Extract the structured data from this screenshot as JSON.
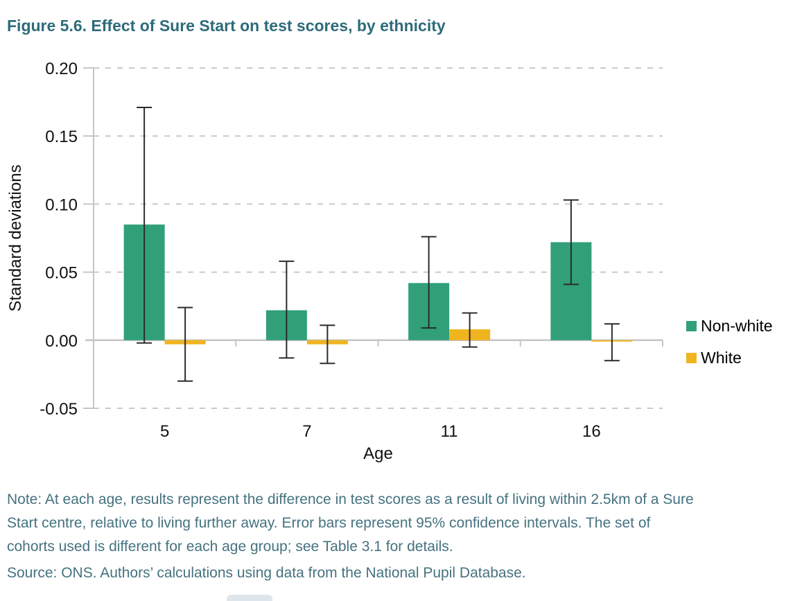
{
  "chart_data": {
    "type": "bar",
    "title": "Figure 5.6. Effect of Sure Start on test scores, by ethnicity",
    "xlabel": "Age",
    "ylabel": "Standard deviations",
    "categories": [
      "5",
      "7",
      "11",
      "16"
    ],
    "ylim": [
      -0.05,
      0.2
    ],
    "y_ticks": [
      0.2,
      0.15,
      0.1,
      0.05,
      0.0,
      -0.05
    ],
    "y_tick_labels": [
      "0.20",
      "0.15",
      "0.10",
      "0.05",
      "0.00",
      "-0.05"
    ],
    "grid": "horizontal-dashed",
    "legend_position": "right",
    "error_bars": "95% confidence intervals",
    "series": [
      {
        "name": "Non-white",
        "color": "#31A078",
        "values": [
          0.085,
          0.022,
          0.042,
          0.072
        ],
        "ci_low": [
          -0.002,
          -0.013,
          0.009,
          0.041
        ],
        "ci_high": [
          0.171,
          0.058,
          0.076,
          0.103
        ]
      },
      {
        "name": "White",
        "color": "#F0B41E",
        "values": [
          -0.003,
          -0.003,
          0.008,
          -0.001
        ],
        "ci_low": [
          -0.03,
          -0.017,
          -0.005,
          -0.015
        ],
        "ci_high": [
          0.024,
          0.011,
          0.02,
          0.012
        ]
      }
    ]
  },
  "note": {
    "lines": [
      "Note: At each age, results represent the difference in test scores as a result of living within 2.5km of a Sure",
      "Start centre, relative to living further away. Error bars represent 95% confidence intervals. The set of",
      "cohorts used is different for each age group; see Table 3.1 for details."
    ]
  },
  "source": {
    "text": "Source: ONS. Authors’ calculations using data from the National Pupil Database."
  },
  "colors": {
    "title_text": "#2D6B7A",
    "note_text": "#45727F",
    "axis_line": "#C5C5C5",
    "gridline": "#C9C9C9",
    "error_bar": "#2B2B2B",
    "tick_text": "#111111"
  }
}
